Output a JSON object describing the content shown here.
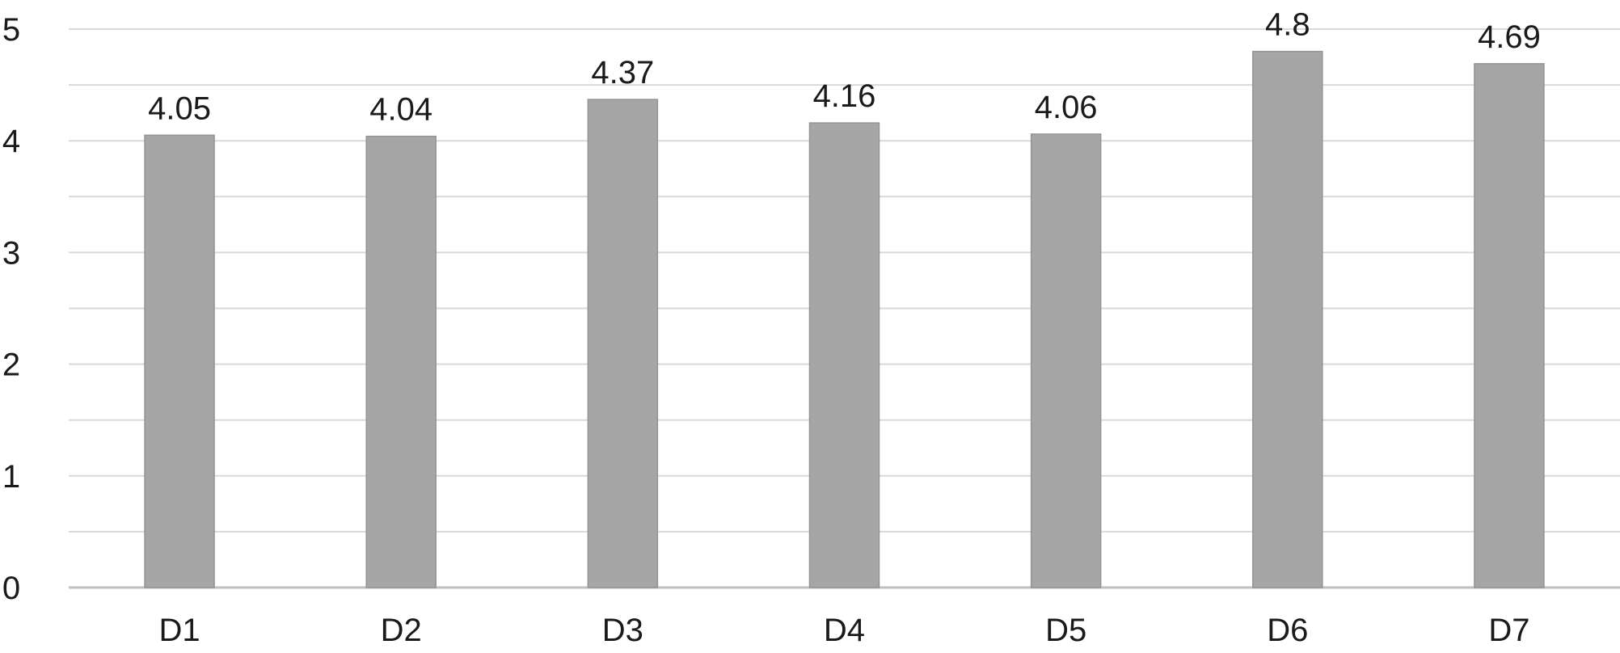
{
  "chart_data": {
    "type": "bar",
    "title": "",
    "xlabel": "",
    "ylabel": "",
    "categories": [
      "D1",
      "D2",
      "D3",
      "D4",
      "D5",
      "D6",
      "D7"
    ],
    "values": [
      4.05,
      4.04,
      4.37,
      4.16,
      4.06,
      4.8,
      4.69
    ],
    "data_labels": [
      "4.05",
      "4.04",
      "4.37",
      "4.16",
      "4.06",
      "4.8",
      "4.69"
    ],
    "ylim": [
      0,
      5
    ],
    "y_ticks": [
      0,
      1,
      2,
      3,
      4,
      5
    ],
    "y_tick_labels": [
      "0",
      "1",
      "2",
      "3",
      "4",
      "5"
    ],
    "grid": {
      "major": true,
      "minor": true,
      "minor_step": 0.5
    },
    "legend": "none",
    "colors": {
      "bar": "#a6a6a6",
      "bar_edge": "#949494",
      "grid": "#d9d9d9",
      "axis": "#bfbfbf",
      "text": "#1a1a1a"
    }
  }
}
